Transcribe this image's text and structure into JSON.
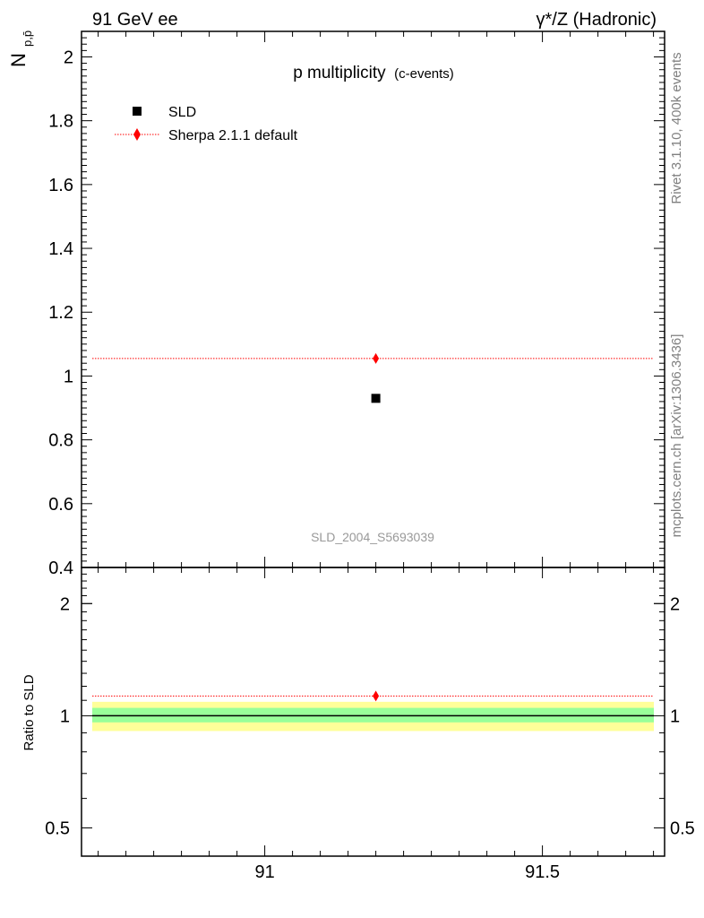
{
  "header": {
    "left_label": "91 GeV ee",
    "right_label": "γ*/Z (Hadronic)"
  },
  "side_labels": {
    "rivet": "Rivet 3.1.10,  400k events",
    "mcplots": "mcplots.cern.ch [arXiv:1306.3436]"
  },
  "colors": {
    "data": "#000000",
    "mc": "#ff0000",
    "band_inner": "#99ff99",
    "band_outer": "#ffff99"
  },
  "chart_data": {
    "type": "scatter",
    "title": "p multiplicity",
    "subtitle": "(c-events)",
    "watermark": "SLD_2004_S5693039",
    "ylabel_main": "N",
    "ylabel_sub": "p,p̄",
    "ylabel_ratio": "Ratio to SLD",
    "xlim": [
      90.67,
      91.72
    ],
    "ylim": [
      0.4,
      2.08
    ],
    "ratio_ylim": [
      0.42,
      2.5
    ],
    "x_ticks": [
      91,
      91.5
    ],
    "x_tick_labels": [
      "91",
      "91.5"
    ],
    "y_ticks": [
      0.4,
      0.6,
      0.8,
      1,
      1.2,
      1.4,
      1.6,
      1.8,
      2
    ],
    "y_tick_labels": [
      "0.4",
      "0.6",
      "0.8",
      "1",
      "1.2",
      "1.4",
      "1.6",
      "1.8",
      "2"
    ],
    "ratio_ticks": [
      0.5,
      1,
      2
    ],
    "ratio_tick_labels": [
      "0.5",
      "1",
      "2"
    ],
    "legend": [
      {
        "label": "SLD",
        "marker": "square"
      },
      {
        "label": "Sherpa 2.1.1 default",
        "marker": "diamond"
      }
    ],
    "series": [
      {
        "name": "SLD",
        "x": [
          91.2
        ],
        "y": [
          0.93
        ]
      },
      {
        "name": "Sherpa 2.1.1 default",
        "x": [
          91.2
        ],
        "y": [
          1.055
        ],
        "line_y": 1.055
      }
    ],
    "ratio": {
      "reference": 1.0,
      "mc": 1.13,
      "band_inner": [
        0.96,
        1.05
      ],
      "band_outer": [
        0.91,
        1.09
      ]
    }
  }
}
